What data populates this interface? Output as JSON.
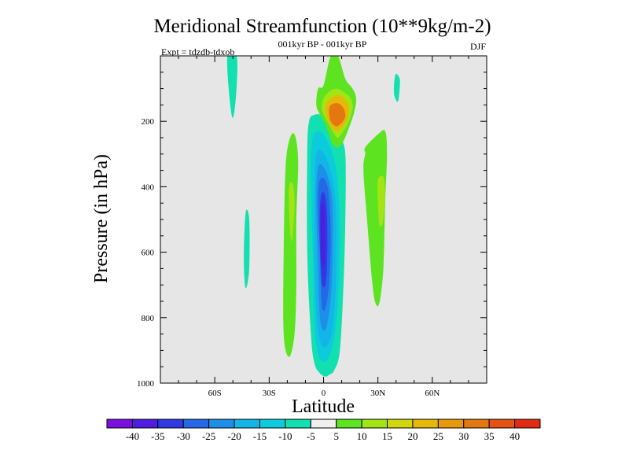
{
  "chart_data": {
    "type": "contour",
    "title": "Meridional Streamfunction (10**9kg/m-2)",
    "subtitle_center": "001kyr BP - 001kyr BP",
    "subtitle_left": "Expt = tdzdb-tdxob",
    "subtitle_right": "DJF",
    "xlabel": "Latitude",
    "ylabel": "Pressure (in hPa)",
    "xlim": [
      -90,
      90
    ],
    "ylim": [
      1000,
      0
    ],
    "x_ticks": [
      {
        "value": -60,
        "label": "60S"
      },
      {
        "value": -30,
        "label": "30S"
      },
      {
        "value": 0,
        "label": "0"
      },
      {
        "value": 30,
        "label": "30N"
      },
      {
        "value": 60,
        "label": "60N"
      }
    ],
    "y_ticks": [
      {
        "value": 200,
        "label": "200"
      },
      {
        "value": 400,
        "label": "400"
      },
      {
        "value": 600,
        "label": "600"
      },
      {
        "value": 800,
        "label": "800"
      },
      {
        "value": 1000,
        "label": "1000"
      }
    ],
    "background_color": "#e6e6e6",
    "levels": [
      -40,
      -35,
      -30,
      -25,
      -20,
      -15,
      -10,
      -5,
      5,
      10,
      15,
      20,
      25,
      30,
      35,
      40
    ],
    "colorbar_colors": [
      "#7a10e0",
      "#4f1de0",
      "#2f3ae3",
      "#2468e6",
      "#1e8fe8",
      "#13b5e6",
      "#0ccbdd",
      "#12e0b0",
      "#efefef",
      "#5de320",
      "#a2e414",
      "#d2d60d",
      "#e6b80a",
      "#e69a0a",
      "#e57710",
      "#e45214",
      "#e02a12"
    ],
    "features": [
      {
        "name": "southern-deep-negative-cell",
        "color_index": 7,
        "lat": [
          -8,
          -5,
          -1,
          3,
          6,
          9,
          12,
          12,
          11,
          9,
          6,
          3,
          1,
          -2,
          -5,
          -7,
          -9,
          -9
        ],
        "p": [
          200,
          180,
          180,
          190,
          220,
          250,
          300,
          500,
          700,
          900,
          960,
          975,
          980,
          970,
          940,
          850,
          600,
          300
        ]
      },
      {
        "name": "southern-deep-negative-cell-l2",
        "color_index": 6,
        "lat": [
          -6,
          -3,
          0,
          3,
          6,
          8,
          9,
          8,
          6,
          3,
          0,
          -3,
          -5,
          -6,
          -7
        ],
        "p": [
          250,
          230,
          240,
          270,
          320,
          400,
          550,
          750,
          860,
          920,
          935,
          910,
          820,
          600,
          350
        ]
      },
      {
        "name": "southern-deep-negative-cell-l3",
        "color_index": 5,
        "lat": [
          -4,
          -1,
          2,
          5,
          7,
          7,
          6,
          4,
          1,
          -2,
          -4,
          -5,
          -5
        ],
        "p": [
          300,
          290,
          320,
          380,
          480,
          650,
          780,
          860,
          890,
          870,
          780,
          600,
          400
        ]
      },
      {
        "name": "southern-deep-negative-cell-l4",
        "color_index": 4,
        "lat": [
          -3,
          0,
          3,
          5,
          5,
          4,
          2,
          0,
          -2,
          -3,
          -4
        ],
        "p": [
          340,
          340,
          380,
          460,
          620,
          740,
          820,
          840,
          800,
          650,
          450
        ]
      },
      {
        "name": "southern-deep-negative-cell-l5",
        "color_index": 3,
        "lat": [
          -2,
          1,
          3,
          4,
          3,
          1,
          -1,
          -2,
          -3
        ],
        "p": [
          380,
          380,
          430,
          560,
          700,
          770,
          760,
          600,
          450
        ]
      },
      {
        "name": "southern-deep-negative-cell-l6",
        "color_index": 2,
        "lat": [
          -1,
          1,
          2,
          2,
          1,
          -1,
          -2,
          -2
        ],
        "p": [
          420,
          430,
          500,
          620,
          700,
          690,
          580,
          470
        ]
      },
      {
        "name": "southern-deep-negative-cell-l7",
        "color_index": 1,
        "lat": [
          -1,
          0.5,
          1,
          0.5,
          -1,
          -1.5
        ],
        "p": [
          450,
          470,
          560,
          640,
          630,
          520
        ]
      },
      {
        "name": "upper-positive-cell",
        "color_index": 9,
        "lat": [
          4,
          8,
          12,
          16,
          18,
          17,
          14,
          11,
          8,
          5,
          3,
          1,
          -2,
          -4,
          -3,
          0
        ],
        "p": [
          0,
          0,
          70,
          100,
          130,
          170,
          220,
          260,
          280,
          270,
          240,
          210,
          180,
          150,
          100,
          90
        ]
      },
      {
        "name": "upper-positive-cell-l2",
        "color_index": 10,
        "lat": [
          3,
          7,
          11,
          15,
          16,
          14,
          11,
          8,
          6,
          4,
          1,
          -1,
          0
        ],
        "p": [
          110,
          100,
          110,
          130,
          160,
          200,
          230,
          250,
          240,
          220,
          190,
          160,
          130
        ]
      },
      {
        "name": "upper-positive-cell-l3",
        "color_index": 12,
        "lat": [
          4,
          8,
          12,
          14,
          13,
          10,
          7,
          4,
          2,
          1
        ],
        "p": [
          130,
          120,
          135,
          160,
          195,
          220,
          230,
          215,
          190,
          155
        ]
      },
      {
        "name": "upper-positive-cell-l4",
        "color_index": 14,
        "lat": [
          4,
          8,
          11,
          12,
          10,
          7,
          4,
          3
        ],
        "p": [
          150,
          145,
          160,
          185,
          205,
          215,
          200,
          170
        ]
      },
      {
        "name": "northern-positive-band",
        "color_index": 9,
        "lat": [
          23,
          30,
          34,
          35,
          34,
          33,
          31,
          29,
          27,
          24,
          22,
          23
        ],
        "p": [
          280,
          240,
          230,
          300,
          450,
          650,
          750,
          760,
          700,
          500,
          350,
          300
        ]
      },
      {
        "name": "northern-positive-band-l2",
        "color_index": 10,
        "lat": [
          30,
          33,
          34,
          33,
          31,
          30
        ],
        "p": [
          380,
          370,
          420,
          500,
          520,
          450
        ]
      },
      {
        "name": "southern-positive-band",
        "color_index": 9,
        "lat": [
          -19,
          -16,
          -14,
          -15,
          -15,
          -16,
          -19,
          -22,
          -22,
          -21
        ],
        "p": [
          260,
          240,
          320,
          500,
          700,
          850,
          920,
          850,
          600,
          350
        ]
      },
      {
        "name": "southern-positive-band-l2",
        "color_index": 10,
        "lat": [
          -19,
          -17,
          -16,
          -17,
          -18,
          -19
        ],
        "p": [
          400,
          390,
          450,
          550,
          560,
          480
        ]
      },
      {
        "name": "upper-southern-negative-sliver",
        "color_index": 7,
        "lat": [
          -53,
          -48,
          -48,
          -50,
          -52
        ],
        "p": [
          0,
          0,
          100,
          190,
          120
        ]
      },
      {
        "name": "mid-southern-negative-sliver",
        "color_index": 7,
        "lat": [
          -43,
          -41,
          -41,
          -43,
          -44
        ],
        "p": [
          480,
          500,
          650,
          710,
          620
        ]
      },
      {
        "name": "upper-northern-negative-sliver",
        "color_index": 7,
        "lat": [
          40,
          42,
          42,
          41,
          39,
          39
        ],
        "p": [
          55,
          70,
          100,
          140,
          120,
          80
        ]
      }
    ]
  }
}
